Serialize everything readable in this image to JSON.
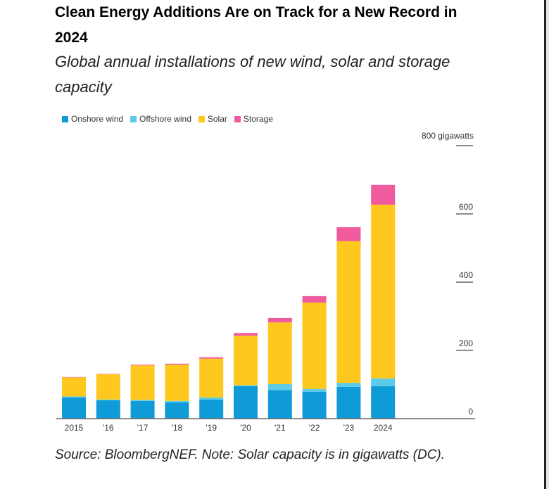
{
  "header": {
    "title": "Clean Energy Additions Are on Track for a New Record in 2024",
    "subtitle": "Global annual installations of new wind, solar and storage capacity"
  },
  "footer": {
    "source": "Source: BloombergNEF. Note: Solar capacity is in gigawatts (DC)."
  },
  "chart_data": {
    "type": "bar",
    "stacked": true,
    "title": "Clean Energy Additions Are on Track for a New Record in 2024",
    "ylabel": "800 gigawatts",
    "categories": [
      "2015",
      "'16",
      "'17",
      "'18",
      "'19",
      "'20",
      "'21",
      "'22",
      "'23",
      "2024"
    ],
    "series": [
      {
        "name": "Onshore wind",
        "color": "#0f9bd7",
        "values": [
          62,
          54,
          52,
          48,
          56,
          95,
          84,
          79,
          93,
          95
        ]
      },
      {
        "name": "Offshore wind",
        "color": "#5ccbe8",
        "values": [
          3,
          2,
          3,
          4,
          6,
          3,
          17,
          8,
          12,
          23
        ]
      },
      {
        "name": "Solar",
        "color": "#ffc81e",
        "values": [
          56,
          74,
          101,
          106,
          114,
          145,
          181,
          253,
          415,
          509
        ]
      },
      {
        "name": "Storage",
        "color": "#ef5b9c",
        "values": [
          1,
          1,
          2,
          3,
          4,
          8,
          13,
          19,
          41,
          58
        ]
      }
    ],
    "ylim": [
      0,
      800
    ],
    "yticks": [
      0,
      200,
      400,
      600,
      800
    ],
    "ytick_labels": [
      "0",
      "200",
      "400",
      "600",
      "800 gigawatts"
    ],
    "legend": "top-left"
  }
}
